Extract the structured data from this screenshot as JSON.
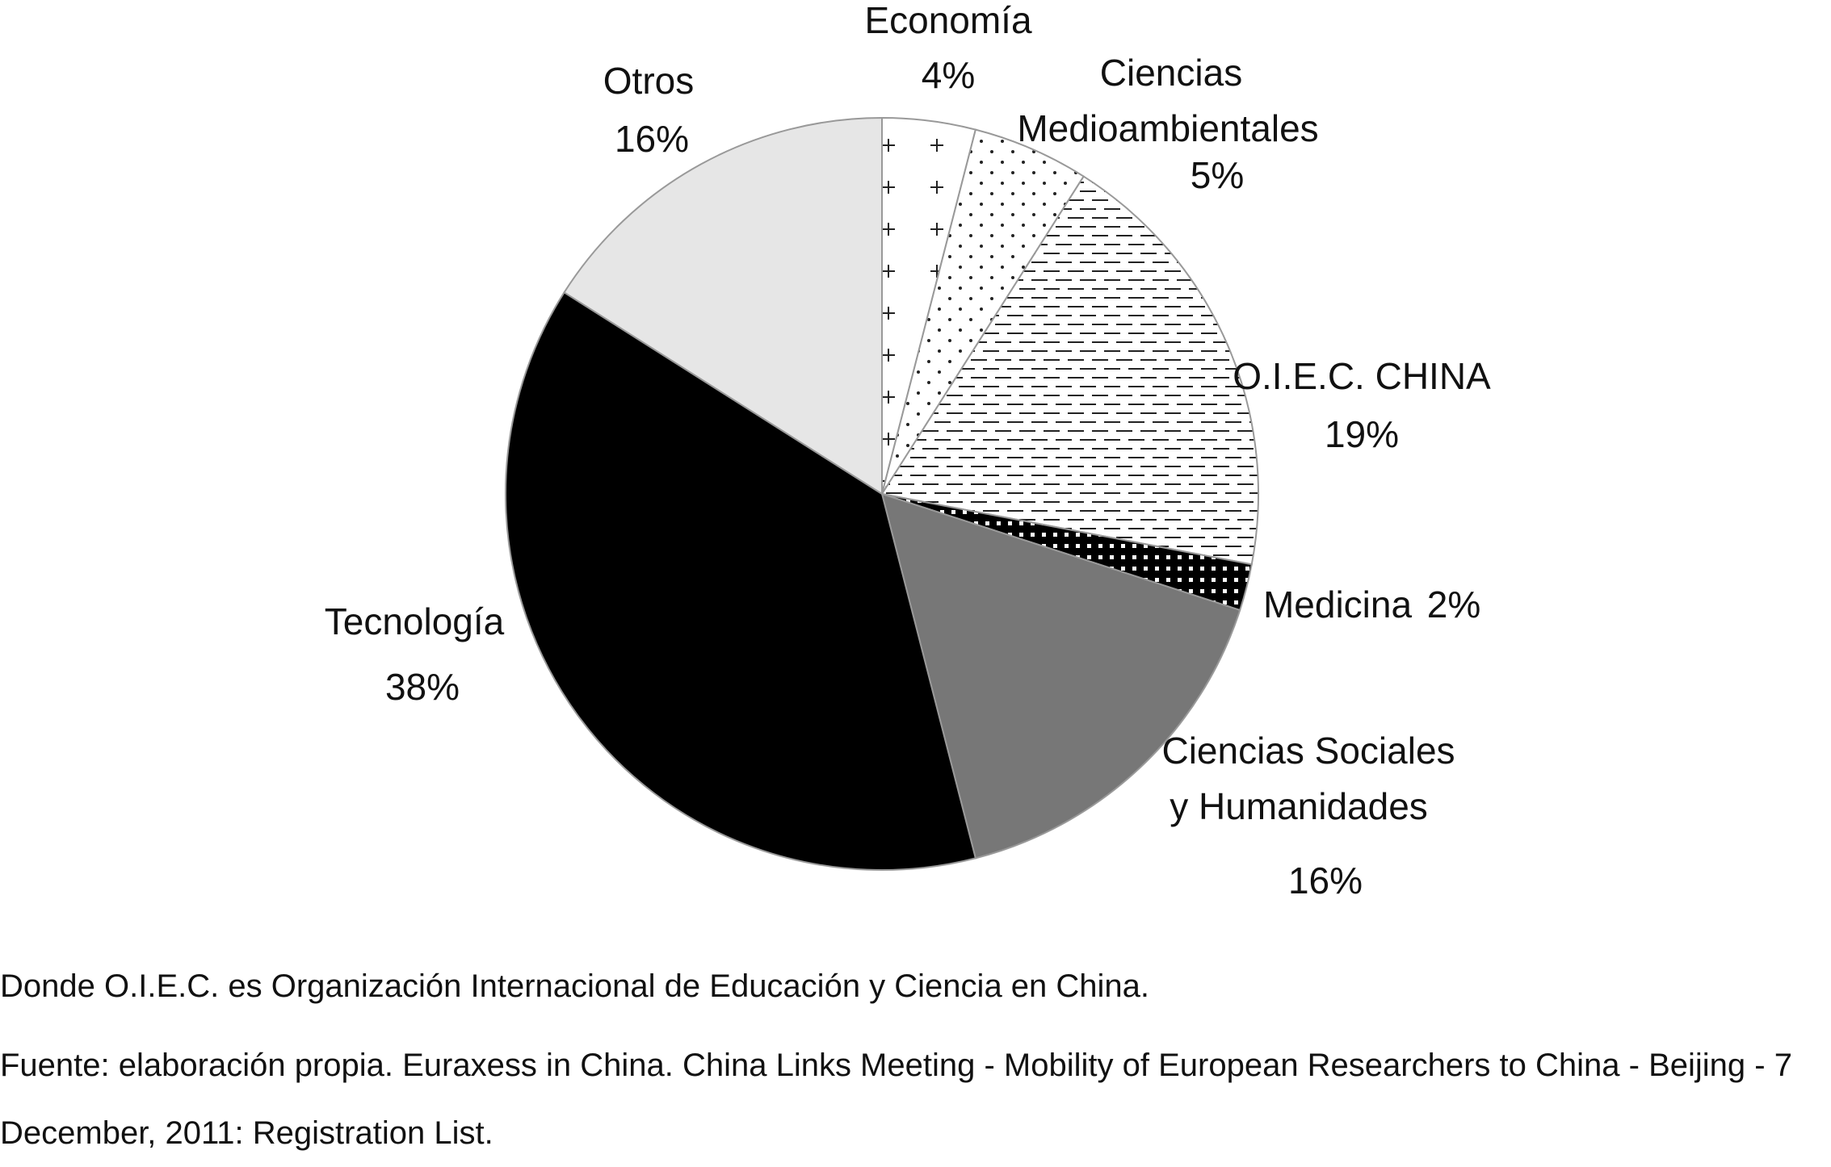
{
  "chart_data": {
    "type": "pie",
    "categories": [
      "Economía",
      "Ciencias Medioambientales",
      "O.I.E.C. CHINA",
      "Medicina",
      "Ciencias Sociales y Humanidades",
      "Tecnología",
      "Otros"
    ],
    "values": [
      4,
      5,
      19,
      2,
      16,
      38,
      16
    ],
    "value_labels": [
      "4%",
      "5%",
      "19%",
      "2%",
      "16%",
      "38%",
      "16%"
    ],
    "colors": [
      "#ffffff",
      "#ffffff",
      "#ffffff",
      "#000000",
      "#777777",
      "#000000",
      "#e6e6e6"
    ],
    "note": "Donde O.I.E.C. es Organización Internacional de Educación y Ciencia en China.",
    "source": "Fuente: elaboración propia. Euraxess in China. China Links Meeting - Mobility of European Researchers to China - Beijing - 7 December, 2011: Registration List."
  }
}
